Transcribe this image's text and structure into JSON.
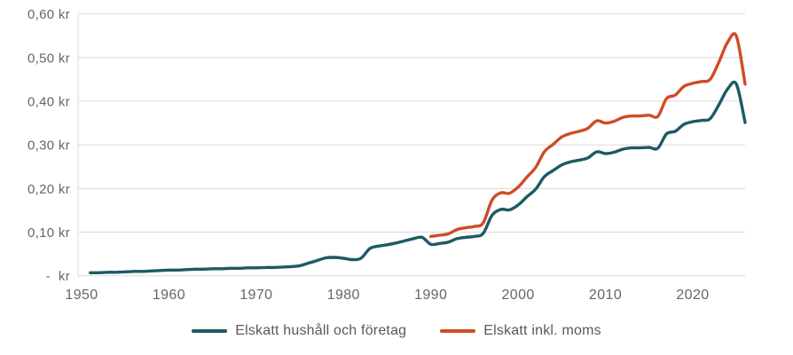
{
  "chart": {
    "background": "#ffffff",
    "grid_color": "#d8d8d8",
    "axis_text_color": "#666666",
    "legend_text_color": "#595959"
  },
  "chart_data": {
    "type": "line",
    "title": "",
    "xlabel": "",
    "ylabel": "",
    "ylim": [
      0,
      0.6
    ],
    "xlim": [
      1949.5,
      2026.5
    ],
    "grid": "horizontal",
    "legend_position": "bottom",
    "y_ticks": [
      {
        "value": 0.6,
        "label": "0,60 kr"
      },
      {
        "value": 0.5,
        "label": "0,50 kr"
      },
      {
        "value": 0.4,
        "label": "0,40 kr"
      },
      {
        "value": 0.3,
        "label": "0,30 kr"
      },
      {
        "value": 0.2,
        "label": "0,20 kr"
      },
      {
        "value": 0.1,
        "label": "0,10 kr"
      },
      {
        "value": 0.0,
        "label": "-  kr"
      }
    ],
    "x_ticks": [
      {
        "value": 1950,
        "label": "1950"
      },
      {
        "value": 1960,
        "label": "1960"
      },
      {
        "value": 1970,
        "label": "1970"
      },
      {
        "value": 1980,
        "label": "1980"
      },
      {
        "value": 1990,
        "label": "1990"
      },
      {
        "value": 2000,
        "label": "2000"
      },
      {
        "value": 2010,
        "label": "2010"
      },
      {
        "value": 2020,
        "label": "2020"
      }
    ],
    "series": [
      {
        "name": "Elskatt hushåll och företag",
        "color": "#1d5a64",
        "points": [
          [
            1951,
            0.007
          ],
          [
            1952,
            0.007
          ],
          [
            1953,
            0.008
          ],
          [
            1954,
            0.008
          ],
          [
            1955,
            0.009
          ],
          [
            1956,
            0.01
          ],
          [
            1957,
            0.01
          ],
          [
            1958,
            0.011
          ],
          [
            1959,
            0.012
          ],
          [
            1960,
            0.013
          ],
          [
            1961,
            0.013
          ],
          [
            1962,
            0.014
          ],
          [
            1963,
            0.015
          ],
          [
            1964,
            0.015
          ],
          [
            1965,
            0.016
          ],
          [
            1966,
            0.016
          ],
          [
            1967,
            0.017
          ],
          [
            1968,
            0.017
          ],
          [
            1969,
            0.018
          ],
          [
            1970,
            0.018
          ],
          [
            1971,
            0.019
          ],
          [
            1972,
            0.019
          ],
          [
            1973,
            0.02
          ],
          [
            1974,
            0.021
          ],
          [
            1975,
            0.023
          ],
          [
            1976,
            0.029
          ],
          [
            1977,
            0.035
          ],
          [
            1978,
            0.041
          ],
          [
            1979,
            0.042
          ],
          [
            1980,
            0.04
          ],
          [
            1981,
            0.037
          ],
          [
            1982,
            0.04
          ],
          [
            1983,
            0.062
          ],
          [
            1984,
            0.068
          ],
          [
            1985,
            0.071
          ],
          [
            1986,
            0.075
          ],
          [
            1987,
            0.08
          ],
          [
            1988,
            0.085
          ],
          [
            1989,
            0.088
          ],
          [
            1990,
            0.072
          ],
          [
            1991,
            0.074
          ],
          [
            1992,
            0.077
          ],
          [
            1993,
            0.085
          ],
          [
            1994,
            0.088
          ],
          [
            1995,
            0.09
          ],
          [
            1996,
            0.097
          ],
          [
            1997,
            0.138
          ],
          [
            1998,
            0.152
          ],
          [
            1999,
            0.151
          ],
          [
            2000,
            0.162
          ],
          [
            2001,
            0.181
          ],
          [
            2002,
            0.198
          ],
          [
            2003,
            0.227
          ],
          [
            2004,
            0.241
          ],
          [
            2005,
            0.254
          ],
          [
            2006,
            0.261
          ],
          [
            2007,
            0.265
          ],
          [
            2008,
            0.27
          ],
          [
            2009,
            0.284
          ],
          [
            2010,
            0.28
          ],
          [
            2011,
            0.283
          ],
          [
            2012,
            0.29
          ],
          [
            2013,
            0.293
          ],
          [
            2014,
            0.293
          ],
          [
            2015,
            0.294
          ],
          [
            2016,
            0.292
          ],
          [
            2017,
            0.325
          ],
          [
            2018,
            0.331
          ],
          [
            2019,
            0.347
          ],
          [
            2020,
            0.353
          ],
          [
            2021,
            0.356
          ],
          [
            2022,
            0.36
          ],
          [
            2023,
            0.392
          ],
          [
            2024,
            0.428
          ],
          [
            2025,
            0.439
          ],
          [
            2026,
            0.351
          ]
        ]
      },
      {
        "name": "Elskatt inkl. moms",
        "color": "#d04b25",
        "points": [
          [
            1990,
            0.09
          ],
          [
            1991,
            0.093
          ],
          [
            1992,
            0.096
          ],
          [
            1993,
            0.106
          ],
          [
            1994,
            0.11
          ],
          [
            1995,
            0.113
          ],
          [
            1996,
            0.121
          ],
          [
            1997,
            0.173
          ],
          [
            1998,
            0.19
          ],
          [
            1999,
            0.189
          ],
          [
            2000,
            0.203
          ],
          [
            2001,
            0.226
          ],
          [
            2002,
            0.248
          ],
          [
            2003,
            0.284
          ],
          [
            2004,
            0.301
          ],
          [
            2005,
            0.318
          ],
          [
            2006,
            0.326
          ],
          [
            2007,
            0.331
          ],
          [
            2008,
            0.338
          ],
          [
            2009,
            0.355
          ],
          [
            2010,
            0.35
          ],
          [
            2011,
            0.354
          ],
          [
            2012,
            0.363
          ],
          [
            2013,
            0.366
          ],
          [
            2014,
            0.366
          ],
          [
            2015,
            0.368
          ],
          [
            2016,
            0.365
          ],
          [
            2017,
            0.406
          ],
          [
            2018,
            0.414
          ],
          [
            2019,
            0.434
          ],
          [
            2020,
            0.441
          ],
          [
            2021,
            0.445
          ],
          [
            2022,
            0.45
          ],
          [
            2023,
            0.49
          ],
          [
            2024,
            0.535
          ],
          [
            2025,
            0.549
          ],
          [
            2026,
            0.439
          ]
        ]
      }
    ]
  },
  "legend": {
    "items": [
      {
        "label": "Elskatt hushåll och företag",
        "color": "#1d5a64"
      },
      {
        "label": "Elskatt inkl. moms",
        "color": "#d04b25"
      }
    ]
  }
}
